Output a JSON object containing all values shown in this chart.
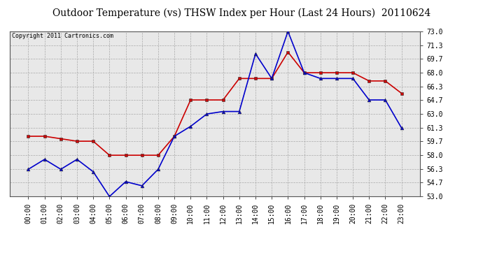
{
  "title": "Outdoor Temperature (vs) THSW Index per Hour (Last 24 Hours)  20110624",
  "copyright": "Copyright 2011 Cartronics.com",
  "x_labels": [
    "00:00",
    "01:00",
    "02:00",
    "03:00",
    "04:00",
    "05:00",
    "06:00",
    "07:00",
    "08:00",
    "09:00",
    "10:00",
    "11:00",
    "12:00",
    "13:00",
    "14:00",
    "15:00",
    "16:00",
    "17:00",
    "18:00",
    "19:00",
    "20:00",
    "21:00",
    "22:00",
    "23:00"
  ],
  "temp_red": [
    60.3,
    60.3,
    60.0,
    59.7,
    59.7,
    58.0,
    58.0,
    58.0,
    58.0,
    60.3,
    64.7,
    64.7,
    64.7,
    67.3,
    67.3,
    67.3,
    70.5,
    68.0,
    68.0,
    68.0,
    68.0,
    67.0,
    67.0,
    65.5
  ],
  "thsw_blue": [
    56.3,
    57.5,
    56.3,
    57.5,
    56.0,
    53.0,
    54.8,
    54.3,
    56.3,
    60.3,
    61.5,
    63.0,
    63.3,
    63.3,
    70.3,
    67.3,
    73.0,
    68.0,
    67.3,
    67.3,
    67.3,
    64.7,
    64.7,
    61.3
  ],
  "y_ticks": [
    53.0,
    54.7,
    56.3,
    58.0,
    59.7,
    61.3,
    63.0,
    64.7,
    66.3,
    68.0,
    69.7,
    71.3,
    73.0
  ],
  "bg_color": "#ffffff",
  "grid_color": "#aaaaaa",
  "plot_bg": "#e8e8e8",
  "red_color": "#cc0000",
  "blue_color": "#0000cc",
  "title_fontsize": 10,
  "axis_fontsize": 7,
  "copyright_fontsize": 6,
  "ylim_min": 53.0,
  "ylim_max": 73.0
}
